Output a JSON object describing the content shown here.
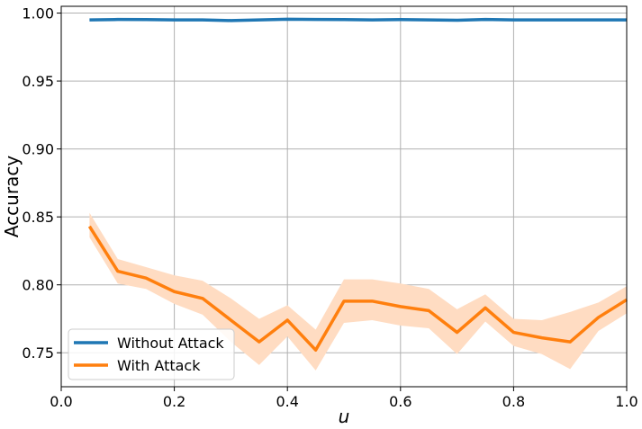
{
  "chart_data": {
    "type": "line",
    "title": "",
    "xlabel": "u",
    "ylabel": "Accuracy",
    "xlim": [
      0.0,
      1.0
    ],
    "ylim": [
      0.725,
      1.005
    ],
    "xticks": [
      "0.0",
      "0.2",
      "0.4",
      "0.6",
      "0.8",
      "1.0"
    ],
    "yticks": [
      "0.75",
      "0.80",
      "0.85",
      "0.90",
      "0.95",
      "1.00"
    ],
    "grid": true,
    "legend_position": "bottom-left",
    "x": [
      0.05,
      0.1,
      0.15,
      0.2,
      0.25,
      0.3,
      0.35,
      0.4,
      0.45,
      0.5,
      0.55,
      0.6,
      0.65,
      0.7,
      0.75,
      0.8,
      0.85,
      0.9,
      0.95,
      1.0
    ],
    "series": [
      {
        "name": "Without Attack",
        "color": "#1f77b4",
        "values": [
          0.995,
          0.9953,
          0.9952,
          0.995,
          0.995,
          0.9945,
          0.995,
          0.9955,
          0.9953,
          0.9952,
          0.995,
          0.9952,
          0.995,
          0.9947,
          0.9953,
          0.995,
          0.995,
          0.995,
          0.995,
          0.995
        ]
      },
      {
        "name": "With Attack",
        "color": "#ff7f0e",
        "band_color": "#ffdcc2",
        "values": [
          0.843,
          0.81,
          0.805,
          0.795,
          0.79,
          0.774,
          0.758,
          0.774,
          0.752,
          0.788,
          0.788,
          0.784,
          0.781,
          0.765,
          0.783,
          0.765,
          0.761,
          0.758,
          0.776,
          0.789
        ],
        "lower": [
          0.835,
          0.801,
          0.797,
          0.786,
          0.778,
          0.758,
          0.741,
          0.762,
          0.737,
          0.772,
          0.774,
          0.77,
          0.768,
          0.749,
          0.773,
          0.755,
          0.749,
          0.738,
          0.766,
          0.779
        ],
        "upper": [
          0.853,
          0.819,
          0.813,
          0.807,
          0.803,
          0.79,
          0.775,
          0.785,
          0.767,
          0.804,
          0.804,
          0.801,
          0.797,
          0.782,
          0.793,
          0.775,
          0.774,
          0.78,
          0.787,
          0.799
        ]
      }
    ]
  }
}
